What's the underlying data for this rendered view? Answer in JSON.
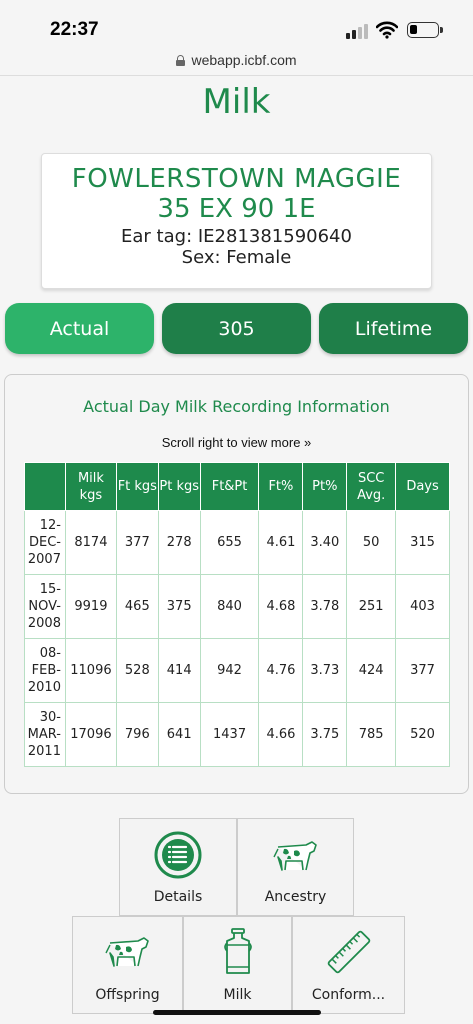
{
  "status": {
    "time": "22:37"
  },
  "browser": {
    "url": "webapp.icbf.com"
  },
  "page": {
    "title": "Milk"
  },
  "animal": {
    "name": "FOWLERSTOWN MAGGIE",
    "grade": "35 EX 90 1E",
    "ear_tag": "Ear tag: IE281381590640",
    "sex": "Sex: Female"
  },
  "tabs": [
    {
      "label": "Actual",
      "active": true
    },
    {
      "label": "305",
      "active": false
    },
    {
      "label": "Lifetime",
      "active": false
    }
  ],
  "panel": {
    "title": "Actual Day Milk Recording Information",
    "scroll_hint": "Scroll right to view more »"
  },
  "table": {
    "headers": [
      "",
      "Milk kgs",
      "Ft kgs",
      "Pt kgs",
      "Ft&Pt",
      "Ft%",
      "Pt%",
      "SCC Avg.",
      "Days"
    ],
    "rows": [
      [
        "12-DEC-2007",
        "8174",
        "377",
        "278",
        "655",
        "4.61",
        "3.40",
        "50",
        "315"
      ],
      [
        "15-NOV-2008",
        "9919",
        "465",
        "375",
        "840",
        "4.68",
        "3.78",
        "251",
        "403"
      ],
      [
        "08-FEB-2010",
        "11096",
        "528",
        "414",
        "942",
        "4.76",
        "3.73",
        "424",
        "377"
      ],
      [
        "30-MAR-2011",
        "17096",
        "796",
        "641",
        "1437",
        "4.66",
        "3.75",
        "785",
        "520"
      ]
    ]
  },
  "nav": {
    "details": "Details",
    "ancestry": "Ancestry",
    "offspring": "Offspring",
    "milk": "Milk",
    "conformation": "Conform..."
  },
  "colors": {
    "brand_green": "#1f8a4c",
    "active_tab": "#2db36a",
    "inactive_tab": "#1f7f49"
  }
}
